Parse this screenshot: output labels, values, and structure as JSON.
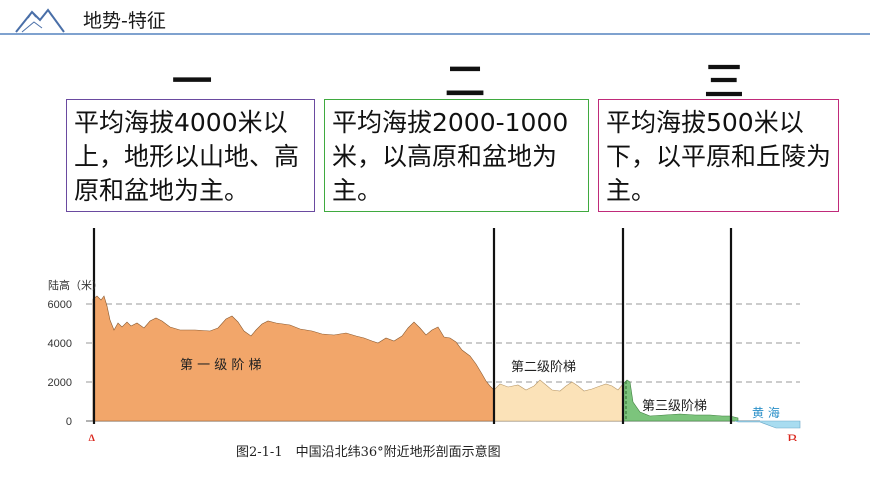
{
  "header": {
    "title": "地势-特征",
    "logo_icon": "mountain-logo-icon"
  },
  "steps": [
    {
      "number": "一",
      "description": "平均海拔4000米以上，地形以山地、高原和盆地为主。"
    },
    {
      "number": "二",
      "description": "平均海拔2000-1000米，以高原和盆地为主。"
    },
    {
      "number": "三",
      "description": "平均海拔500米以下，以平原和丘陵为主。"
    }
  ],
  "chart_data": {
    "type": "area",
    "ylabel": "陆高（米）",
    "yticks": [
      0,
      2000,
      4000,
      6000
    ],
    "ylim": [
      0,
      6600
    ],
    "grid": "dashed",
    "start_label": "A",
    "end_label": "B",
    "regions": [
      {
        "name": "第 一 级 阶 梯",
        "color": "#f2a66a"
      },
      {
        "name": "第二级阶梯",
        "color": "#fbe2b8"
      },
      {
        "name": "第三级阶梯",
        "color": "#7cc47c"
      },
      {
        "name": "黄 海",
        "color": "#a8dcf0"
      }
    ],
    "caption": "图2-1-1　中国沿北纬36°附近地形剖面示意图",
    "colors": {
      "stage1": "#f2a66a",
      "stage2": "#fbe2b8",
      "stage3": "#7cc47c",
      "sea": "#a8dcf0",
      "sea_label": "#2a8fc8",
      "endpoint_label": "#d9261c"
    }
  }
}
